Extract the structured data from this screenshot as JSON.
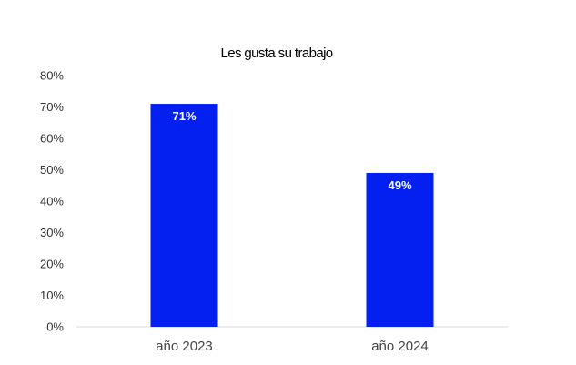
{
  "chart_data": {
    "type": "bar",
    "title": "Les gusta su trabajo",
    "categories": [
      "año 2023",
      "año 2024"
    ],
    "values": [
      71,
      49
    ],
    "data_labels": [
      "71%",
      "49%"
    ],
    "ylim": [
      0,
      80
    ],
    "yticks": [
      0,
      10,
      20,
      30,
      40,
      50,
      60,
      70,
      80
    ],
    "ytick_labels": [
      "0%",
      "10%",
      "20%",
      "30%",
      "40%",
      "50%",
      "60%",
      "70%",
      "80%"
    ],
    "xlabel": "",
    "ylabel": "",
    "grid": false,
    "legend": "none",
    "bar_color": "#0320F0"
  }
}
